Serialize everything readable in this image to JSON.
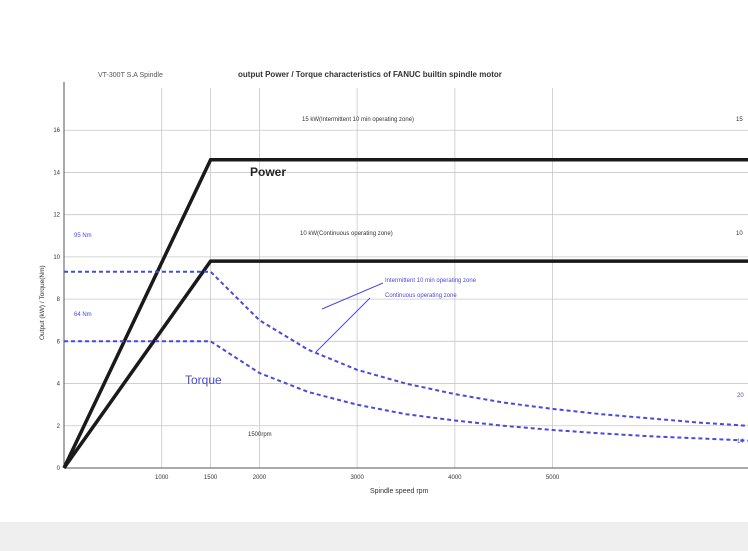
{
  "colors": {
    "background": "#ffffff",
    "grid": "#c8c8c8",
    "power": "#1a1a1a",
    "torque": "#4a4ad8",
    "text": "#333333",
    "axis": "#555555",
    "bottom_band": "#efefef"
  },
  "chart_data": {
    "type": "line",
    "title_left": "VT-300T S.A Spindle",
    "title": "output Power / Torque characteristics of FANUC builtin spindle motor",
    "xlabel": "Spindle speed rpm",
    "ylabel": "Output (kW) / Torque(Nm)",
    "xlim": [
      0,
      7000
    ],
    "ylim": [
      0,
      18
    ],
    "x_ticks": [
      1000,
      1500,
      2000,
      3000,
      4000,
      5000
    ],
    "x_tick_labels": [
      "1000",
      "1500",
      "2000",
      "3000",
      "4000",
      "5000"
    ],
    "y_ticks": [
      0,
      2,
      4,
      6,
      8,
      10,
      12,
      14,
      16
    ],
    "grid": true,
    "series": [
      {
        "style": "solid",
        "color": "#1a1a1a",
        "x": [
          0,
          1500,
          7000
        ],
        "y": [
          0,
          14.6,
          14.6
        ]
      },
      {
        "style": "solid",
        "color": "#1a1a1a",
        "x": [
          0,
          1500,
          7000
        ],
        "y": [
          0,
          9.8,
          9.8
        ]
      },
      {
        "style": "dashed",
        "color": "#4a4ad8",
        "x": [
          0,
          1500,
          2000,
          2500,
          3000,
          3500,
          4000,
          4500,
          5000,
          5500,
          6000,
          6500,
          7000
        ],
        "y": [
          9.3,
          9.3,
          7.0,
          5.6,
          4.65,
          4.0,
          3.5,
          3.1,
          2.8,
          2.55,
          2.35,
          2.15,
          2.0
        ]
      },
      {
        "style": "dashed",
        "color": "#4a4ad8",
        "x": [
          0,
          1500,
          2000,
          2500,
          3000,
          3500,
          4000,
          4500,
          5000,
          5500,
          6000,
          6500,
          7000
        ],
        "y": [
          6.0,
          6.0,
          4.5,
          3.6,
          3.0,
          2.55,
          2.25,
          2.0,
          1.8,
          1.64,
          1.5,
          1.4,
          1.3
        ]
      }
    ],
    "annotations": {
      "power_label": "Power",
      "torque_label": "Torque",
      "power_line1": "15 kW(Intermittent 10 min operating zone)",
      "power_line2": "10 kW(Continuous operating zone)",
      "torque_top_value": "95 Nm",
      "torque_bottom_value": "64 Nm",
      "legend_line1": "Intermittent 10 min operating zone",
      "legend_line2": "Continuous operating zone",
      "base_speed": "1500rpm",
      "right_top": "15",
      "right_mid": "10",
      "right_t1": "20",
      "right_t2": "14"
    }
  }
}
